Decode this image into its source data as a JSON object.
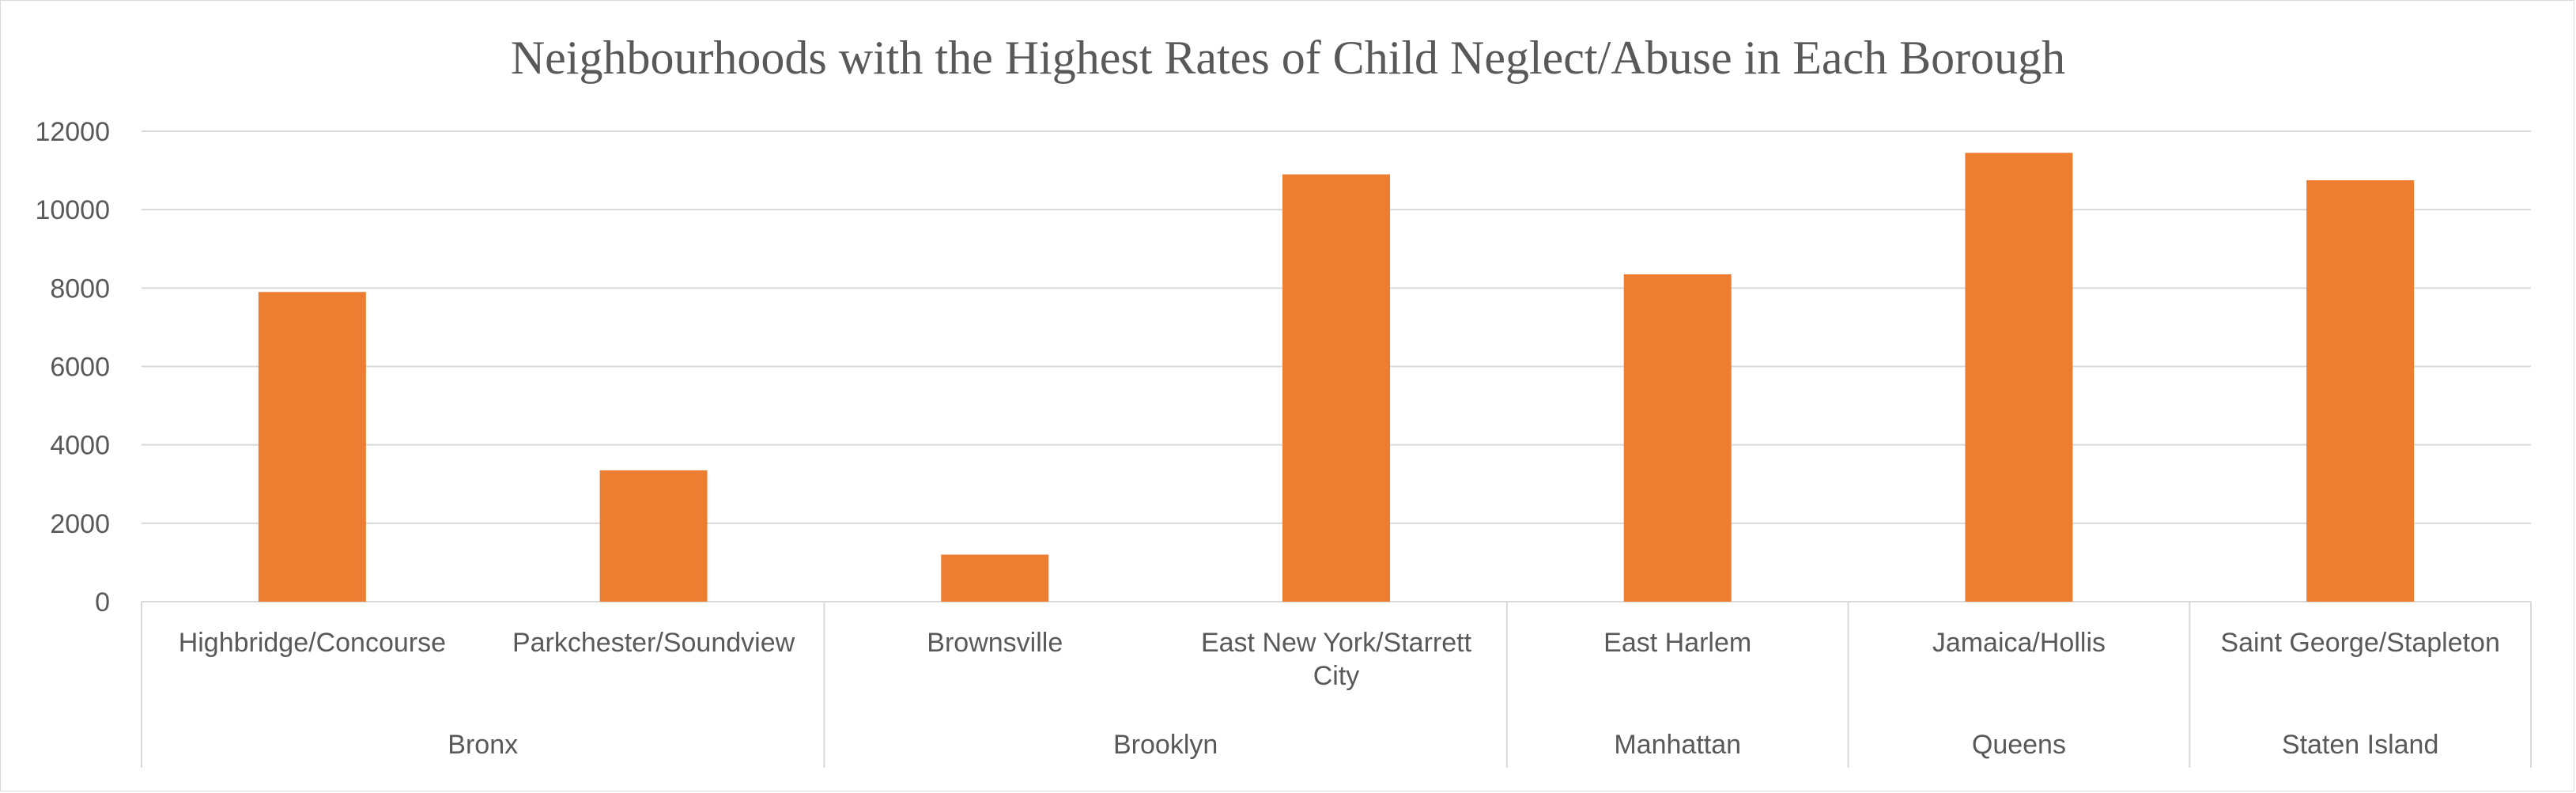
{
  "chart_data": {
    "type": "bar",
    "title": "Neighbourhoods with the Highest Rates of Child Neglect/Abuse in Each Borough",
    "xlabel": "",
    "ylabel": "",
    "ylim": [
      0,
      12000
    ],
    "yticks": [
      "0",
      "2000",
      "4000",
      "6000",
      "8000",
      "10000",
      "12000"
    ],
    "grid": true,
    "bar_color": "#ED7D31",
    "categories": [
      [
        "Highbridge/Concourse"
      ],
      [
        "Parkchester/Soundview"
      ],
      [
        "Brownsville"
      ],
      [
        "East New York/Starrett",
        "City"
      ],
      [
        "East Harlem"
      ],
      [
        "Jamaica/Hollis"
      ],
      [
        "Saint George/Stapleton"
      ]
    ],
    "values": [
      7900,
      3350,
      1200,
      10900,
      8350,
      11450,
      10750
    ],
    "groups": [
      {
        "label": "Bronx",
        "count": 2
      },
      {
        "label": "Brooklyn",
        "count": 2
      },
      {
        "label": "Manhattan",
        "count": 1
      },
      {
        "label": "Queens",
        "count": 1
      },
      {
        "label": "Staten Island",
        "count": 1
      }
    ]
  }
}
